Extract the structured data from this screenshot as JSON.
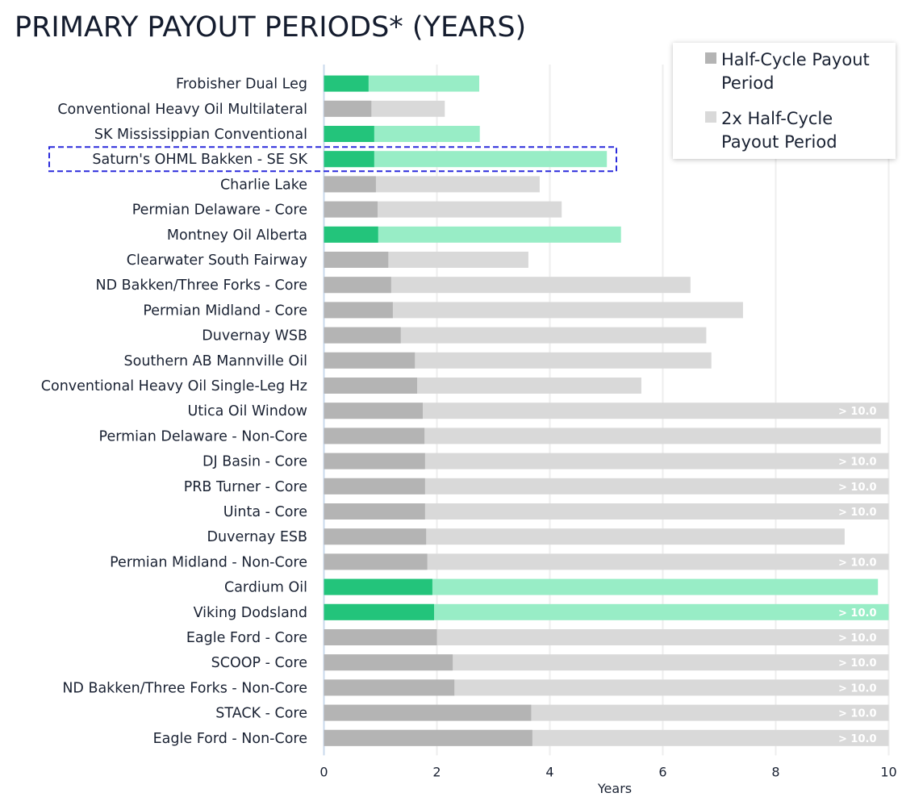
{
  "title": "PRIMARY PAYOUT PERIODS* (YEARS)",
  "colors": {
    "half_gray": "#b4b4b4",
    "full_gray": "#d9d9d9",
    "half_green": "#23c47b",
    "full_green": "#98edc6",
    "highlight_box": "#2b2bdc",
    "gridline": "#eeeeee",
    "axis": "#c9d9ec"
  },
  "legend": {
    "items": [
      {
        "label": "Half-Cycle Payout Period",
        "color": "#b4b4b4"
      },
      {
        "label": "2x Half-Cycle Payout Period",
        "color": "#d9d9d9"
      }
    ]
  },
  "chart_data": {
    "type": "bar",
    "orientation": "horizontal",
    "title": "PRIMARY PAYOUT PERIODS* (YEARS)",
    "xlabel": "Years",
    "ylabel": "",
    "xlim": [
      0,
      10
    ],
    "xticks": [
      "0",
      "2",
      "4",
      "6",
      "8",
      "10"
    ],
    "grid": true,
    "legend_position": "top-right",
    "overflow_label": "> 10.0",
    "highlighted_category": "Saturn's OHML Bakken - SE SK",
    "categories": [
      "Frobisher Dual Leg",
      "Conventional Heavy Oil Multilateral",
      "SK Mississippian Conventional",
      "Saturn's OHML Bakken - SE SK",
      "Charlie Lake",
      "Permian Delaware - Core",
      "Montney Oil Alberta",
      "Clearwater South Fairway",
      "ND Bakken/Three Forks - Core",
      "Permian Midland - Core",
      "Duvernay WSB",
      "Southern AB Mannville Oil",
      "Conventional Heavy Oil Single-Leg Hz",
      "Utica Oil Window",
      "Permian Delaware - Non-Core",
      "DJ Basin - Core",
      "PRB Turner - Core",
      "Uinta - Core",
      "Duvernay ESB",
      "Permian Midland - Non-Core",
      "Cardium Oil",
      "Viking Dodsland",
      "Eagle Ford - Core",
      "SCOOP - Core",
      "ND Bakken/Three Forks - Non-Core",
      "STACK - Core",
      "Eagle Ford - Non-Core"
    ],
    "green_categories": [
      "Frobisher Dual Leg",
      "SK Mississippian Conventional",
      "Saturn's OHML Bakken - SE SK",
      "Montney Oil Alberta",
      "Cardium Oil",
      "Viking Dodsland"
    ],
    "series": [
      {
        "name": "Half-Cycle Payout Period",
        "values": [
          0.79,
          0.84,
          0.89,
          0.89,
          0.92,
          0.95,
          0.96,
          1.14,
          1.19,
          1.22,
          1.36,
          1.61,
          1.65,
          1.75,
          1.78,
          1.79,
          1.79,
          1.79,
          1.81,
          1.83,
          1.92,
          1.95,
          2.0,
          2.28,
          2.31,
          3.67,
          3.69
        ]
      },
      {
        "name": "2x Half-Cycle Payout Period",
        "values": [
          2.75,
          2.14,
          2.76,
          5.01,
          3.82,
          4.21,
          5.26,
          3.62,
          6.49,
          7.42,
          6.77,
          6.86,
          5.62,
          10,
          9.86,
          10,
          10,
          10,
          9.22,
          10,
          9.81,
          10,
          10,
          10,
          10,
          10,
          10
        ],
        "exceeds_axis": [
          false,
          false,
          false,
          false,
          false,
          false,
          false,
          false,
          false,
          false,
          false,
          false,
          false,
          true,
          false,
          true,
          true,
          true,
          false,
          true,
          false,
          true,
          true,
          true,
          true,
          true,
          true
        ]
      }
    ]
  }
}
